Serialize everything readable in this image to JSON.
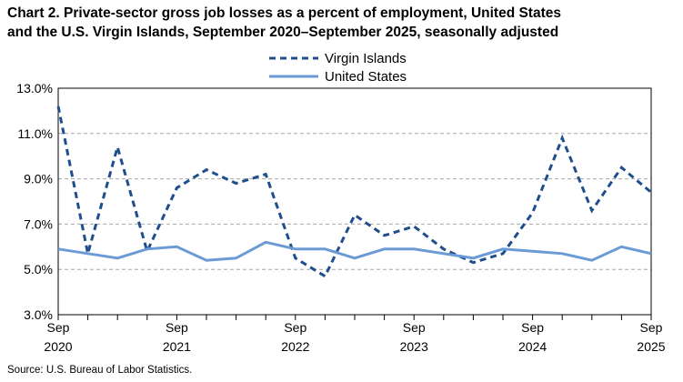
{
  "title_line1": "Chart 2. Private-sector gross job losses as a percent of employment, United States",
  "title_line2": "and the U.S. Virgin Islands, September 2020–September 2025, seasonally adjusted",
  "source": "Source: U.S. Bureau of Labor Statistics.",
  "chart_data": {
    "type": "line",
    "title": "Chart 2. Private-sector gross job losses as a percent of employment, United States and the U.S. Virgin Islands, September 2020–September 2025, seasonally adjusted",
    "xlabel": "",
    "ylabel": "",
    "ylim": [
      3.0,
      13.0
    ],
    "yticks": [
      "3.0%",
      "5.0%",
      "7.0%",
      "9.0%",
      "11.0%",
      "13.0%"
    ],
    "yticks_values": [
      3,
      5,
      7,
      9,
      11,
      13
    ],
    "x": [
      "Sep 2020",
      "Dec 2020",
      "Mar 2021",
      "Jun 2021",
      "Sep 2021",
      "Dec 2021",
      "Mar 2022",
      "Jun 2022",
      "Sep 2022",
      "Dec 2022",
      "Mar 2023",
      "Jun 2023",
      "Sep 2023",
      "Dec 2023",
      "Mar 2024",
      "Jun 2024",
      "Sep 2024",
      "Dec 2024",
      "Mar 2025",
      "Jun 2025",
      "Sep 2025"
    ],
    "xtick_labels": [
      {
        "month": "Sep",
        "year": "2020",
        "index": 0
      },
      {
        "month": "Sep",
        "year": "2021",
        "index": 4
      },
      {
        "month": "Sep",
        "year": "2022",
        "index": 8
      },
      {
        "month": "Sep",
        "year": "2023",
        "index": 12
      },
      {
        "month": "Sep",
        "year": "2024",
        "index": 16
      },
      {
        "month": "Sep",
        "year": "2025",
        "index": 20
      }
    ],
    "grid": true,
    "legend_position": "top-center",
    "series": [
      {
        "name": "Virgin Islands",
        "color": "#1f4e8c",
        "dash": true,
        "values": [
          12.2,
          5.7,
          10.4,
          5.8,
          8.6,
          9.4,
          8.8,
          9.2,
          5.5,
          4.7,
          7.4,
          6.5,
          6.9,
          5.9,
          5.3,
          5.7,
          7.5,
          10.8,
          7.6,
          9.5,
          8.4
        ]
      },
      {
        "name": "United States",
        "color": "#6b9bd6",
        "dash": false,
        "values": [
          5.9,
          5.7,
          5.5,
          5.9,
          6.0,
          5.4,
          5.5,
          6.2,
          5.9,
          5.9,
          5.5,
          5.9,
          5.9,
          5.7,
          5.5,
          5.9,
          5.8,
          5.7,
          5.4,
          6.0,
          5.7
        ]
      }
    ]
  }
}
